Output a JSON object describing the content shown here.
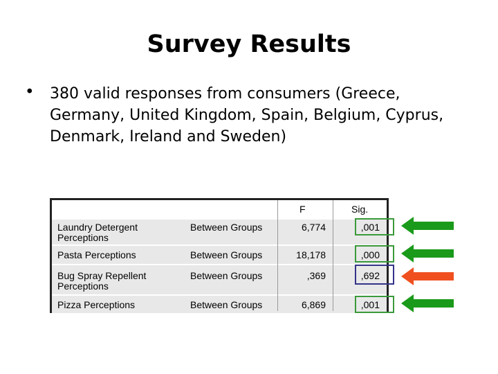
{
  "slide": {
    "title": "Survey Results",
    "bullet": "380 valid responses from consumers (Greece, Germany, United Kingdom, Spain, Belgium, Cyprus, Denmark, Ireland and Sweden)",
    "bullet_symbol": "•"
  },
  "table": {
    "headers": {
      "f": "F",
      "sig": "Sig."
    },
    "rows": [
      {
        "variable": "Laundry Detergent Perceptions",
        "group": "Between Groups",
        "f": "6,774",
        "sig": ",001",
        "significant": true
      },
      {
        "variable": "Pasta Perceptions",
        "group": "Between Groups",
        "f": "18,178",
        "sig": ",000",
        "significant": true
      },
      {
        "variable": "Bug Spray Repellent Perceptions",
        "group": "Between Groups",
        "f": ",369",
        "sig": ",692",
        "significant": false
      },
      {
        "variable": "Pizza Perceptions",
        "group": "Between Groups",
        "f": "6,869",
        "sig": ",001",
        "significant": true
      }
    ]
  },
  "colors": {
    "significant_box": "#3a9a3a",
    "nonsignificant_box": "#33338a",
    "significant_arrow": "#1a9a1a",
    "nonsignificant_arrow": "#f05020",
    "row_fill": "#e8e8e8"
  }
}
